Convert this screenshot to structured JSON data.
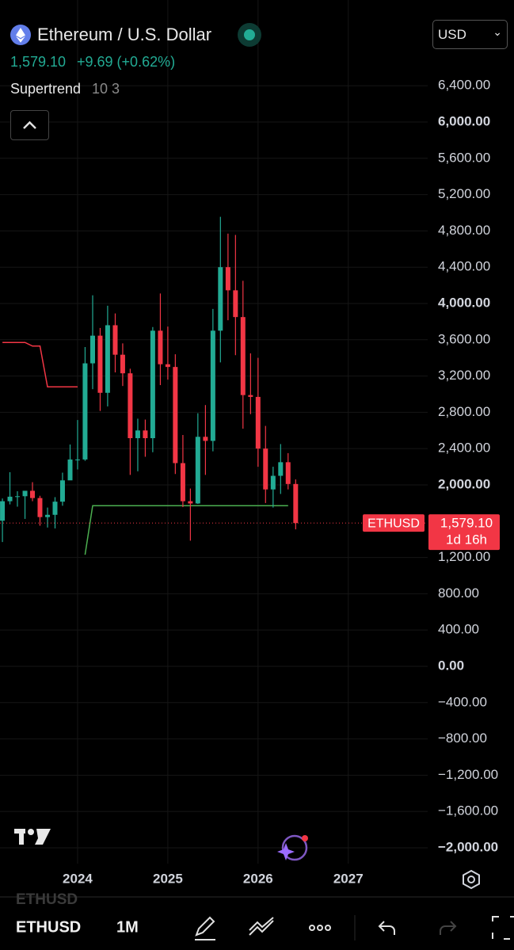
{
  "header": {
    "title": "Ethereum / U.S. Dollar",
    "price": "1,579.10",
    "change": "+9.69 (+0.62%)",
    "indicator": "Supertrend",
    "indicator_params": "10 3",
    "currency": "USD"
  },
  "chart_data": {
    "type": "candlestick",
    "x": [
      2023.167,
      2023.25,
      2023.333,
      2023.417,
      2023.5,
      2023.583,
      2023.667,
      2023.75,
      2023.833,
      2023.917,
      2024,
      2024.083,
      2024.167,
      2024.25,
      2024.333,
      2024.417,
      2024.5,
      2024.583,
      2024.667,
      2024.75,
      2024.833,
      2024.917,
      2025,
      2025.083,
      2025.167,
      2025.25,
      2025.333,
      2025.417,
      2025.5,
      2025.583,
      2025.667,
      2025.75,
      2025.833,
      2025.917,
      2026,
      2026.083,
      2026.167,
      2026.25,
      2026.333,
      2026.417
    ],
    "open": [
      1605,
      1820,
      1870,
      1875,
      1935,
      1855,
      1645,
      1670,
      1815,
      2050,
      2280,
      2280,
      3340,
      3645,
      3015,
      3760,
      3435,
      3230,
      2515,
      2600,
      2515,
      3700,
      3330,
      3300,
      2240,
      1820,
      1795,
      2530,
      2485,
      3700,
      4400,
      4145,
      3850,
      2990,
      2970,
      2400,
      1950,
      2100,
      2250,
      2010
    ],
    "high": [
      1850,
      2140,
      1930,
      1930,
      2030,
      1880,
      1750,
      1865,
      2135,
      2445,
      2715,
      3520,
      4090,
      3730,
      3975,
      3890,
      3560,
      3280,
      2730,
      2720,
      3740,
      4110,
      3745,
      3440,
      2550,
      1960,
      2790,
      2880,
      3940,
      4955,
      4770,
      4755,
      4250,
      3450,
      3400,
      2650,
      2200,
      2450,
      2350,
      2060
    ],
    "low": [
      1370,
      1785,
      1760,
      1625,
      1820,
      1550,
      1530,
      1520,
      1770,
      2100,
      2170,
      2265,
      3055,
      2815,
      2865,
      3240,
      3090,
      2110,
      2150,
      2310,
      2360,
      3100,
      3160,
      2120,
      1755,
      1385,
      1790,
      2110,
      2370,
      3350,
      3815,
      3430,
      2620,
      2780,
      2200,
      1800,
      1750,
      1900,
      1950,
      1510
    ],
    "close": [
      1820,
      1870,
      1875,
      1935,
      1855,
      1645,
      1670,
      1815,
      2050,
      2280,
      2280,
      3340,
      3645,
      3015,
      3760,
      3435,
      3230,
      2515,
      2600,
      2515,
      3700,
      3330,
      3300,
      2240,
      1820,
      1795,
      2530,
      2485,
      3700,
      4400,
      4145,
      3850,
      2990,
      2970,
      2400,
      1950,
      2100,
      2250,
      2010,
      1579.1
    ],
    "up_color": "#22ab94",
    "down_color": "#f23645",
    "supertrend_down": {
      "color": "#f23645",
      "values": [
        3570,
        3570,
        3570,
        3570,
        3530,
        3530,
        3080,
        3080,
        3080,
        3080,
        3080,
        null,
        null,
        null,
        null,
        null,
        null,
        null,
        null,
        null,
        null,
        null,
        null,
        null,
        null,
        null,
        null,
        null,
        null,
        null,
        null,
        null,
        null,
        null,
        null,
        null,
        null,
        null,
        null,
        null
      ]
    },
    "supertrend_up": {
      "color": "#4caf50",
      "values": [
        null,
        null,
        null,
        null,
        null,
        null,
        null,
        null,
        null,
        null,
        null,
        1230,
        1770,
        1770,
        1770,
        1770,
        1770,
        1770,
        1770,
        1770,
        1770,
        1770,
        1770,
        1770,
        1770,
        1770,
        1770,
        1770,
        1770,
        1770,
        1770,
        1770,
        1770,
        1770,
        1770,
        1770,
        1770,
        1770,
        1770,
        null
      ]
    },
    "xlim": [
      2023.14,
      2027.88
    ],
    "xticks": [
      2024,
      2025,
      2026,
      2027
    ],
    "ylim": [
      -2175,
      7345
    ],
    "yticks": [
      {
        "value": 6400,
        "label": "6,400.00"
      },
      {
        "value": 6000,
        "label": "6,000.00"
      },
      {
        "value": 5600,
        "label": "5,600.00"
      },
      {
        "value": 5200,
        "label": "5,200.00"
      },
      {
        "value": 4800,
        "label": "4,800.00"
      },
      {
        "value": 4400,
        "label": "4,400.00"
      },
      {
        "value": 4000,
        "label": "4,000.00"
      },
      {
        "value": 3600,
        "label": "3,600.00"
      },
      {
        "value": 3200,
        "label": "3,200.00"
      },
      {
        "value": 2800,
        "label": "2,800.00"
      },
      {
        "value": 2400,
        "label": "2,400.00"
      },
      {
        "value": 2000,
        "label": "2,000.00"
      },
      {
        "value": 1200,
        "label": "1,200.00"
      },
      {
        "value": 800,
        "label": "800.00"
      },
      {
        "value": 400,
        "label": "400.00"
      },
      {
        "value": 0,
        "label": "0.00"
      },
      {
        "value": -400,
        "label": "−400.00"
      },
      {
        "value": -800,
        "label": "−800.00"
      },
      {
        "value": -1200,
        "label": "−1,200.00"
      },
      {
        "value": -1600,
        "label": "−1,600.00"
      },
      {
        "value": -2000,
        "label": "−2,000.00"
      }
    ],
    "grid": true,
    "last_price": 1579.1,
    "last_price_label": "1,579.10",
    "symbol": "ETHUSD",
    "countdown": "1d 16h"
  },
  "toolbar": {
    "ghost_symbol": "ETHUSD",
    "symbol": "ETHUSD",
    "interval": "1M"
  }
}
